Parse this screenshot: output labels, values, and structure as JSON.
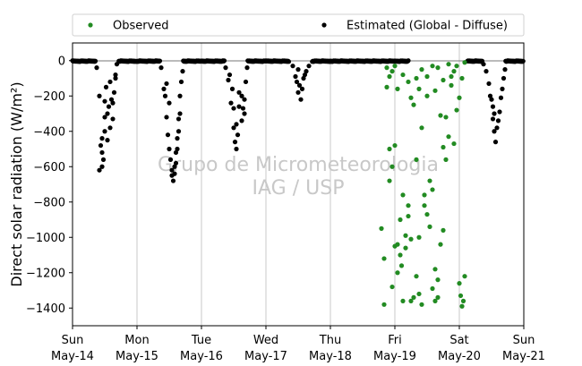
{
  "chart_data": {
    "type": "scatter",
    "ylabel": "Direct solar radiation (W/m²)",
    "ylim": [
      -1500,
      100
    ],
    "yticks": [
      0,
      -200,
      -400,
      -600,
      -800,
      -1000,
      -1200,
      -1400
    ],
    "ytick_labels": [
      "0",
      "−200",
      "−400",
      "−600",
      "−800",
      "−1000",
      "−1200",
      "−1400"
    ],
    "xlim": [
      "2017-05-14 00:00",
      "2017-05-21 00:00"
    ],
    "xticks": [
      {
        "day": "Sun",
        "date": "May-14"
      },
      {
        "day": "Mon",
        "date": "May-15"
      },
      {
        "day": "Tue",
        "date": "May-16"
      },
      {
        "day": "Wed",
        "date": "May-17"
      },
      {
        "day": "Thu",
        "date": "May-18"
      },
      {
        "day": "Fri",
        "date": "May-19"
      },
      {
        "day": "Sat",
        "date": "May-20"
      },
      {
        "day": "Sun",
        "date": "May-21"
      }
    ],
    "grid": "vertical",
    "legend_position": "top, outside",
    "watermark": [
      "Grupo de Micrometeorologia",
      "IAG / USP"
    ],
    "series": [
      {
        "name": "Observed",
        "color": "#228b22",
        "points": [
          [
            "2017-05-18 19:00",
            -950
          ],
          [
            "2017-05-18 20:00",
            -1380
          ],
          [
            "2017-05-18 22:00",
            -680
          ],
          [
            "2017-05-18 23:00",
            -1280
          ],
          [
            "2017-05-19 00:00",
            -480
          ],
          [
            "2017-05-19 01:00",
            -1040
          ],
          [
            "2017-05-19 02:00",
            -1100
          ],
          [
            "2017-05-19 02:30",
            -1160
          ],
          [
            "2017-05-19 03:00",
            -1360
          ],
          [
            "2017-05-19 04:00",
            -1060
          ],
          [
            "2017-05-19 05:00",
            -880
          ],
          [
            "2017-05-19 06:00",
            -1360
          ],
          [
            "2017-05-19 07:00",
            -1340
          ],
          [
            "2017-05-19 08:00",
            -1220
          ],
          [
            "2017-05-19 09:00",
            -1320
          ],
          [
            "2017-05-19 10:00",
            -1380
          ],
          [
            "2017-05-19 11:00",
            -820
          ],
          [
            "2017-05-19 12:00",
            -870
          ],
          [
            "2017-05-19 13:00",
            -940
          ],
          [
            "2017-05-19 14:00",
            -1290
          ],
          [
            "2017-05-19 15:00",
            -1360
          ],
          [
            "2017-05-19 16:00",
            -1340
          ],
          [
            "2017-05-19 17:00",
            -1040
          ],
          [
            "2017-05-19 18:00",
            -960
          ],
          [
            "2017-05-19 19:00",
            -320
          ],
          [
            "2017-05-19 20:00",
            -430
          ],
          [
            "2017-05-19 22:00",
            -470
          ],
          [
            "2017-05-20 00:00",
            -1260
          ],
          [
            "2017-05-20 00:30",
            -1330
          ],
          [
            "2017-05-20 01:00",
            -1390
          ],
          [
            "2017-05-20 01:30",
            -1360
          ],
          [
            "2017-05-20 02:00",
            -1220
          ],
          [
            "2017-05-18 20:00",
            -1120
          ],
          [
            "2017-05-18 21:00",
            -150
          ],
          [
            "2017-05-18 22:00",
            -500
          ],
          [
            "2017-05-18 23:00",
            -600
          ],
          [
            "2017-05-19 00:00",
            -1050
          ],
          [
            "2017-05-19 01:00",
            -1200
          ],
          [
            "2017-05-19 02:00",
            -900
          ],
          [
            "2017-05-19 03:00",
            -760
          ],
          [
            "2017-05-19 04:00",
            -990
          ],
          [
            "2017-05-19 05:00",
            -820
          ],
          [
            "2017-05-19 06:00",
            -1010
          ],
          [
            "2017-05-19 07:00",
            -250
          ],
          [
            "2017-05-19 08:00",
            -560
          ],
          [
            "2017-05-19 09:00",
            -1000
          ],
          [
            "2017-05-19 10:00",
            -380
          ],
          [
            "2017-05-19 11:00",
            -760
          ],
          [
            "2017-05-19 12:00",
            -200
          ],
          [
            "2017-05-19 13:00",
            -680
          ],
          [
            "2017-05-19 14:00",
            -730
          ],
          [
            "2017-05-19 15:00",
            -1180
          ],
          [
            "2017-05-19 16:00",
            -1240
          ],
          [
            "2017-05-19 17:00",
            -310
          ],
          [
            "2017-05-19 18:00",
            -490
          ],
          [
            "2017-05-19 19:00",
            -560
          ],
          [
            "2017-05-19 20:00",
            -20
          ],
          [
            "2017-05-19 21:00",
            -90
          ],
          [
            "2017-05-19 22:00",
            -60
          ],
          [
            "2017-05-19 23:00",
            -280
          ],
          [
            "2017-05-20 00:00",
            -210
          ],
          [
            "2017-05-20 01:00",
            -100
          ],
          [
            "2017-05-18 21:00",
            -40
          ],
          [
            "2017-05-18 22:00",
            -90
          ],
          [
            "2017-05-18 23:00",
            -60
          ],
          [
            "2017-05-19 00:00",
            -30
          ],
          [
            "2017-05-19 01:00",
            -160
          ],
          [
            "2017-05-19 03:00",
            -80
          ],
          [
            "2017-05-19 05:00",
            -120
          ],
          [
            "2017-05-19 06:00",
            -210
          ],
          [
            "2017-05-19 08:00",
            -100
          ],
          [
            "2017-05-19 09:00",
            -160
          ],
          [
            "2017-05-19 10:00",
            -50
          ],
          [
            "2017-05-19 12:00",
            -90
          ],
          [
            "2017-05-19 14:00",
            -30
          ],
          [
            "2017-05-19 15:00",
            -170
          ],
          [
            "2017-05-19 16:00",
            -40
          ],
          [
            "2017-05-19 18:00",
            -110
          ],
          [
            "2017-05-19 21:00",
            -140
          ],
          [
            "2017-05-19 23:00",
            -30
          ],
          [
            "2017-05-20 02:00",
            -10
          ]
        ]
      },
      {
        "name": "Estimated (Global - Diffuse)",
        "color": "#000000",
        "days": [
          {
            "date": "2017-05-14",
            "points": [
              [
                "09:00",
                -40
              ],
              [
                "10:00",
                -200
              ],
              [
                "10:30",
                -480
              ],
              [
                "11:00",
                -600
              ],
              [
                "11:30",
                -560
              ],
              [
                "12:00",
                -320
              ],
              [
                "12:30",
                -150
              ],
              [
                "13:00",
                -450
              ],
              [
                "13:30",
                -260
              ],
              [
                "14:00",
                -120
              ],
              [
                "14:30",
                -220
              ],
              [
                "15:00",
                -330
              ],
              [
                "15:30",
                -180
              ],
              [
                "16:00",
                -100
              ],
              [
                "16:30",
                -20
              ],
              [
                "10:00",
                -620
              ],
              [
                "11:00",
                -520
              ],
              [
                "12:00",
                -400
              ],
              [
                "13:00",
                -300
              ],
              [
                "14:00",
                -380
              ],
              [
                "15:00",
                -240
              ],
              [
                "16:00",
                -80
              ],
              [
                "11:00",
                -440
              ],
              [
                "12:00",
                -230
              ]
            ]
          },
          {
            "date": "2017-05-15",
            "points": [
              [
                "09:00",
                -40
              ],
              [
                "10:00",
                -160
              ],
              [
                "11:00",
                -320
              ],
              [
                "12:00",
                -500
              ],
              [
                "13:00",
                -650
              ],
              [
                "13:30",
                -680
              ],
              [
                "14:00",
                -600
              ],
              [
                "14:30",
                -520
              ],
              [
                "15:00",
                -440
              ],
              [
                "15:30",
                -330
              ],
              [
                "16:00",
                -200
              ],
              [
                "16:30",
                -120
              ],
              [
                "17:00",
                -60
              ],
              [
                "10:30",
                -200
              ],
              [
                "11:30",
                -420
              ],
              [
                "12:30",
                -560
              ],
              [
                "13:00",
                -620
              ],
              [
                "14:00",
                -640
              ],
              [
                "15:00",
                -500
              ],
              [
                "16:00",
                -300
              ],
              [
                "11:00",
                -130
              ],
              [
                "12:00",
                -240
              ],
              [
                "14:30",
                -580
              ],
              [
                "15:30",
                -400
              ]
            ]
          },
          {
            "date": "2017-05-16",
            "points": [
              [
                "09:00",
                -40
              ],
              [
                "10:00",
                -110
              ],
              [
                "11:00",
                -240
              ],
              [
                "12:00",
                -380
              ],
              [
                "12:30",
                -460
              ],
              [
                "13:00",
                -500
              ],
              [
                "13:30",
                -420
              ],
              [
                "14:00",
                -260
              ],
              [
                "15:00",
                -340
              ],
              [
                "15:30",
                -270
              ],
              [
                "16:00",
                -220
              ],
              [
                "16:30",
                -120
              ],
              [
                "17:00",
                -40
              ],
              [
                "11:30",
                -160
              ],
              [
                "12:00",
                -270
              ],
              [
                "13:00",
                -360
              ],
              [
                "14:00",
                -180
              ],
              [
                "15:00",
                -200
              ],
              [
                "16:00",
                -300
              ],
              [
                "10:30",
                -80
              ]
            ]
          },
          {
            "date": "2017-05-17",
            "points": [
              [
                "10:00",
                -30
              ],
              [
                "11:00",
                -90
              ],
              [
                "12:00",
                -180
              ],
              [
                "12:30",
                -140
              ],
              [
                "13:00",
                -220
              ],
              [
                "14:00",
                -100
              ],
              [
                "15:00",
                -60
              ],
              [
                "16:00",
                -30
              ],
              [
                "11:30",
                -120
              ],
              [
                "13:30",
                -160
              ],
              [
                "14:30",
                -80
              ],
              [
                "12:00",
                -50
              ]
            ]
          },
          {
            "date": "2017-05-20",
            "points": [
              [
                "09:00",
                -20
              ],
              [
                "10:00",
                -60
              ],
              [
                "11:00",
                -130
              ],
              [
                "12:00",
                -220
              ],
              [
                "12:30",
                -330
              ],
              [
                "13:00",
                -400
              ],
              [
                "13:30",
                -460
              ],
              [
                "14:00",
                -380
              ],
              [
                "15:00",
                -290
              ],
              [
                "16:00",
                -160
              ],
              [
                "17:00",
                -50
              ],
              [
                "11:30",
                -200
              ],
              [
                "12:30",
                -260
              ],
              [
                "13:00",
                -300
              ],
              [
                "14:30",
                -340
              ],
              [
                "15:30",
                -210
              ],
              [
                "16:30",
                -100
              ]
            ]
          }
        ]
      }
    ]
  }
}
